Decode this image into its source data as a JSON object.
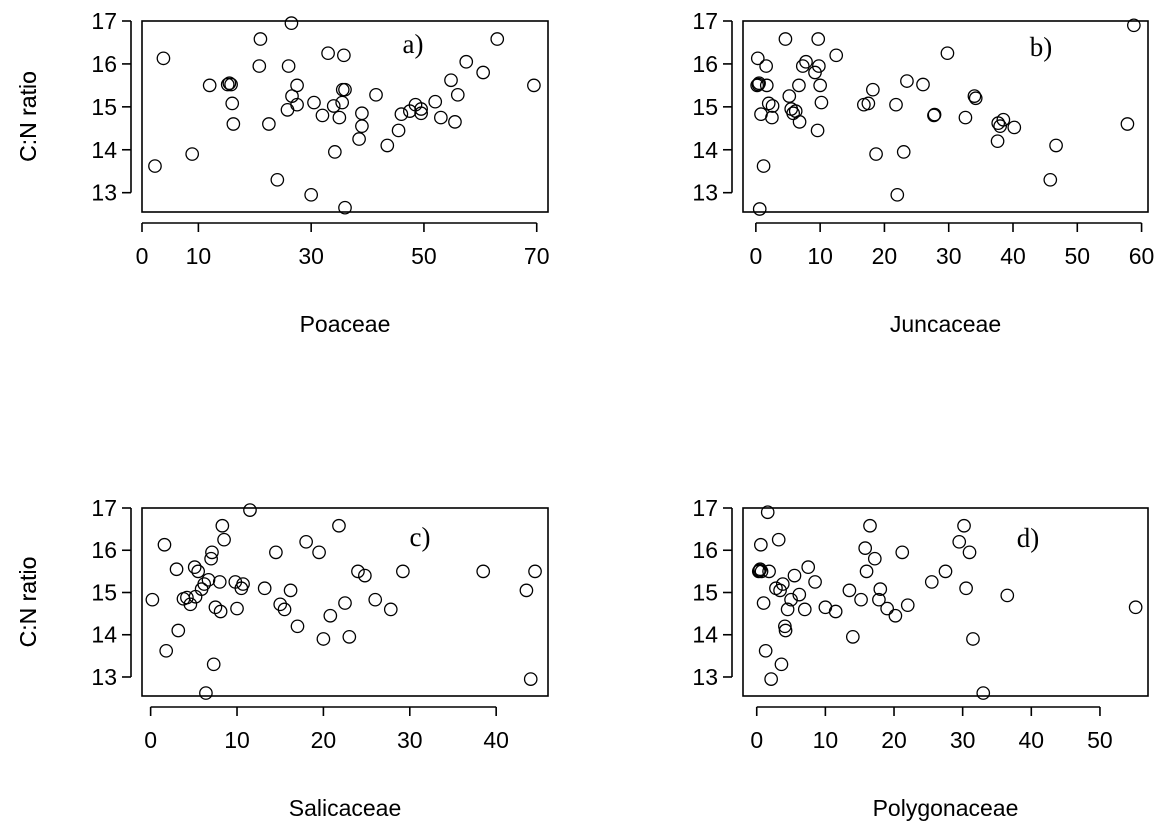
{
  "chart_data": [
    {
      "type": "scatter",
      "panel_label": "a)",
      "xlabel": "Poaceae",
      "ylabel": "C:N ratio",
      "xlim": [
        0,
        72
      ],
      "ylim": [
        12.55,
        17
      ],
      "xticks": [
        0,
        10,
        30,
        50,
        70
      ],
      "yticks": [
        13,
        14,
        15,
        16,
        17
      ],
      "x": [
        2.3,
        3.8,
        8.9,
        12,
        15.2,
        15.5,
        16,
        15.8,
        16.2,
        20.8,
        21,
        22.5,
        24,
        25.8,
        26,
        26.6,
        26.5,
        27.5,
        27.5,
        30,
        30.5,
        32,
        33,
        34,
        34.2,
        35,
        35.5,
        36,
        35.6,
        35.8,
        36,
        38.5,
        39,
        39,
        41.5,
        43.5,
        45.5,
        46,
        47.5,
        48.5,
        49.5,
        49.5,
        52,
        53,
        54.8,
        55.5,
        56,
        57.5,
        60.5,
        63,
        69.5
      ],
      "y": [
        13.62,
        16.13,
        13.9,
        15.5,
        15.52,
        15.55,
        15.08,
        15.52,
        14.6,
        15.95,
        16.58,
        14.6,
        13.3,
        14.93,
        15.95,
        15.25,
        16.95,
        15.05,
        15.5,
        12.95,
        15.1,
        14.8,
        16.25,
        15.02,
        13.95,
        14.75,
        15.1,
        12.65,
        15.4,
        16.2,
        15.4,
        14.25,
        14.55,
        14.85,
        15.28,
        14.1,
        14.45,
        14.83,
        14.9,
        15.05,
        14.95,
        14.85,
        15.12,
        14.75,
        15.62,
        14.65,
        15.28,
        16.05,
        15.8,
        16.58,
        15.5
      ]
    },
    {
      "type": "scatter",
      "panel_label": "b)",
      "xlabel": "Juncaceae",
      "ylabel": "C:N ratio",
      "xlim": [
        -2,
        61
      ],
      "ylim": [
        12.55,
        17
      ],
      "xticks": [
        0,
        10,
        20,
        30,
        40,
        50,
        60
      ],
      "yticks": [
        13,
        14,
        15,
        16,
        17
      ],
      "x": [
        0.2,
        0.3,
        0.4,
        0.5,
        0.6,
        0.8,
        1.2,
        1.6,
        1.7,
        2,
        2.5,
        2.6,
        4.6,
        5.2,
        5.5,
        5.8,
        6.2,
        6.7,
        6.8,
        7.3,
        7.8,
        9.2,
        9.6,
        9.8,
        9.7,
        10,
        10.2,
        12.5,
        16.8,
        17.5,
        18.2,
        18.7,
        21.8,
        22,
        23,
        23.5,
        26,
        27.8,
        27.7,
        29.8,
        32.6,
        34,
        34.2,
        37.7,
        37.6,
        38,
        38.5,
        40.2,
        45.8,
        46.7,
        57.8,
        58.8
      ],
      "y": [
        15.5,
        16.13,
        15.52,
        15.55,
        12.62,
        14.83,
        13.62,
        15.95,
        15.5,
        15.08,
        14.75,
        15.02,
        16.58,
        15.25,
        14.95,
        14.85,
        14.9,
        15.5,
        14.65,
        15.95,
        16.05,
        15.8,
        14.45,
        15.95,
        16.58,
        15.5,
        15.1,
        16.2,
        15.05,
        15.08,
        15.4,
        13.9,
        15.05,
        12.95,
        13.95,
        15.6,
        15.52,
        14.82,
        14.8,
        16.25,
        14.75,
        15.25,
        15.2,
        14.62,
        14.2,
        14.55,
        14.7,
        14.52,
        13.3,
        14.1,
        14.6,
        16.9
      ]
    },
    {
      "type": "scatter",
      "panel_label": "c)",
      "xlabel": "Salicaceae",
      "ylabel": "C:N ratio",
      "xlim": [
        -1,
        46
      ],
      "ylim": [
        12.55,
        17
      ],
      "xticks": [
        0,
        10,
        20,
        30,
        40
      ],
      "yticks": [
        13,
        14,
        15,
        16,
        17
      ],
      "x": [
        0.2,
        1.6,
        1.8,
        3,
        3.2,
        3.8,
        4.2,
        4.6,
        5.1,
        5.2,
        5.5,
        5.9,
        6.2,
        6.4,
        6.7,
        7,
        7.1,
        7.3,
        7.5,
        8,
        8.1,
        8.3,
        8.5,
        9.8,
        10,
        10.5,
        10.7,
        11.5,
        13.2,
        14.5,
        15,
        15.5,
        16.2,
        17,
        18,
        19.5,
        20,
        20.8,
        21.8,
        22.5,
        23,
        24,
        24.8,
        26,
        27.8,
        29.2,
        38.5,
        43.5,
        44,
        44.5
      ],
      "y": [
        14.83,
        16.13,
        13.62,
        15.55,
        14.1,
        14.85,
        14.88,
        14.72,
        15.6,
        14.9,
        15.5,
        15.08,
        15.2,
        12.62,
        15.3,
        15.8,
        15.95,
        13.3,
        14.65,
        15.25,
        14.55,
        16.58,
        16.25,
        15.25,
        14.62,
        15.1,
        15.2,
        16.95,
        15.1,
        15.95,
        14.72,
        14.6,
        15.05,
        14.2,
        16.2,
        15.95,
        13.9,
        14.45,
        16.58,
        14.75,
        13.95,
        15.5,
        15.4,
        14.83,
        14.6,
        15.5,
        15.5,
        15.05,
        12.95,
        15.5
      ]
    },
    {
      "type": "scatter",
      "panel_label": "d)",
      "xlabel": "Polygonaceae",
      "ylabel": "C:N ratio",
      "xlim": [
        -2,
        57
      ],
      "ylim": [
        12.55,
        17
      ],
      "xticks": [
        0,
        10,
        20,
        30,
        40,
        50
      ],
      "yticks": [
        13,
        14,
        15,
        16,
        17
      ],
      "x": [
        0.3,
        0.4,
        0.5,
        0.6,
        0.7,
        1,
        1.3,
        1.6,
        1.8,
        2.1,
        2.8,
        3.2,
        3.4,
        3.6,
        3.8,
        4.1,
        4.2,
        4.5,
        5,
        5.5,
        6.2,
        7,
        7.5,
        8.5,
        10,
        11.5,
        13.5,
        14,
        15.2,
        15.8,
        16,
        16.5,
        17.2,
        17.8,
        18,
        19,
        20.2,
        21.2,
        22,
        25.5,
        27.5,
        29.5,
        30.2,
        30.5,
        31,
        31.5,
        33,
        36.5,
        55.2
      ],
      "y": [
        15.5,
        15.52,
        15.55,
        16.13,
        15.5,
        14.75,
        13.62,
        16.9,
        15.5,
        12.95,
        15.1,
        16.25,
        15.05,
        13.3,
        15.2,
        14.2,
        14.1,
        14.6,
        14.83,
        15.4,
        14.95,
        14.6,
        15.6,
        15.25,
        14.65,
        14.55,
        15.05,
        13.95,
        14.83,
        16.05,
        15.5,
        16.58,
        15.8,
        14.83,
        15.08,
        14.62,
        14.45,
        15.95,
        14.7,
        15.25,
        15.5,
        16.2,
        16.58,
        15.1,
        15.95,
        13.9,
        12.62,
        14.93,
        14.65
      ]
    }
  ]
}
